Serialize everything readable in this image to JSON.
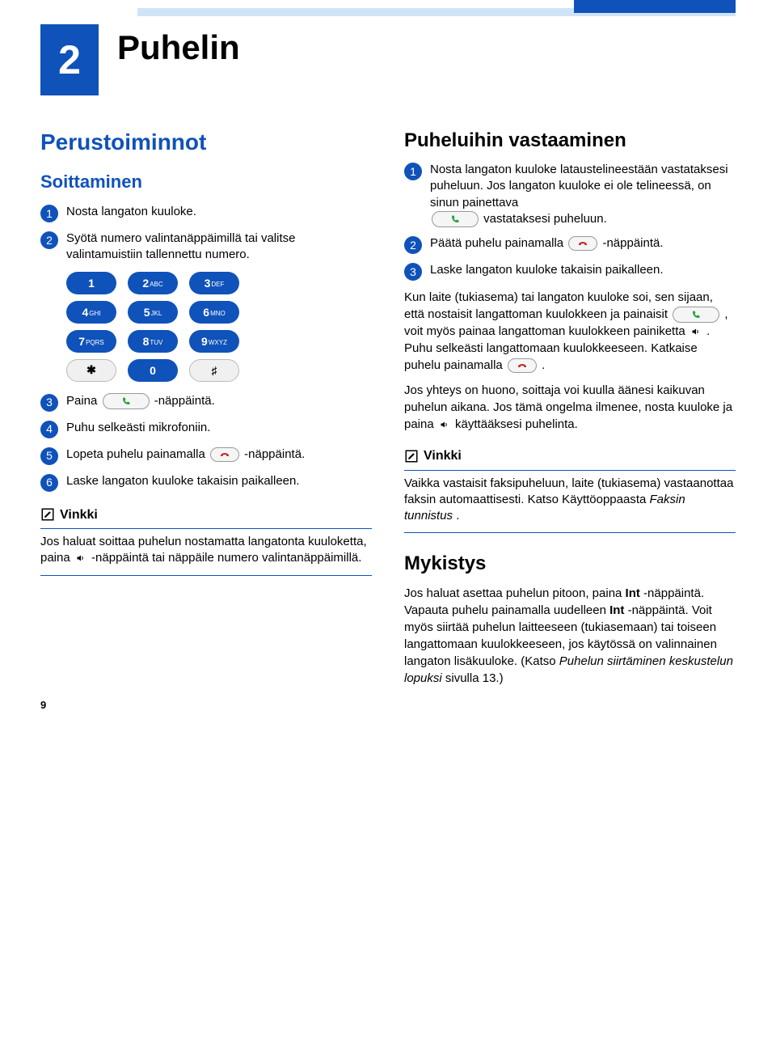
{
  "colors": {
    "brand_blue": "#0f52ba",
    "light_blue": "#d0e4f7",
    "key_gray_bg": "#f0f0f0",
    "btn_border": "#999999",
    "phone_green": "#1fa33a",
    "phone_red": "#c62828"
  },
  "chapter": {
    "number": "2",
    "title": "Puhelin"
  },
  "page_number": "9",
  "left": {
    "h2": "Perustoiminnot",
    "h3": "Soittaminen",
    "steps": {
      "1": "Nosta langaton kuuloke.",
      "2": "Syötä numero valintanäppäimillä tai valitse valintamuistiin tallennettu numero.",
      "3_pre": "Paina ",
      "3_post": "-näppäintä.",
      "4": "Puhu selkeästi mikrofoniin.",
      "5_pre": "Lopeta puhelu painamalla ",
      "5_post": "-näppäintä.",
      "6": "Laske langaton kuuloke takaisin paikalleen."
    },
    "keypad": [
      {
        "digit": "1",
        "sub": ""
      },
      {
        "digit": "2",
        "sub": "ABC"
      },
      {
        "digit": "3",
        "sub": "DEF"
      },
      {
        "digit": "4",
        "sub": "GHI"
      },
      {
        "digit": "5",
        "sub": "JKL"
      },
      {
        "digit": "6",
        "sub": "MNO"
      },
      {
        "digit": "7",
        "sub": "PQRS"
      },
      {
        "digit": "8",
        "sub": "TUV"
      },
      {
        "digit": "9",
        "sub": "WXYZ"
      },
      {
        "digit": "✱",
        "sub": "",
        "gray": true
      },
      {
        "digit": "0",
        "sub": ""
      },
      {
        "digit": "♯",
        "sub": "",
        "gray": true
      }
    ],
    "note": {
      "title": "Vinkki",
      "body_a": "Jos haluat soittaa puhelun nostamatta langatonta kuuloketta, paina ",
      "body_b": "-näppäintä tai näppäile numero valintanäppäimillä."
    }
  },
  "right": {
    "h3": "Puheluihin vastaaminen",
    "step1_a": "Nosta langaton kuuloke lataustelineestään vastataksesi puheluun. Jos langaton kuuloke ei ole telineessä, on sinun painettava",
    "step1_b": " vastataksesi puheluun.",
    "step2_a": "Päätä puhelu painamalla ",
    "step2_b": "-näppäintä.",
    "step3": "Laske langaton kuuloke takaisin paikalleen.",
    "para1_a": "Kun laite (tukiasema) tai langaton kuuloke soi, sen sijaan, että nostaisit langattoman kuulokkeen ja painaisit ",
    "para1_b": ", voit myös painaa langattoman kuulokkeen painiketta ",
    "para1_c": ". Puhu selkeästi langattomaan kuulokkeeseen. Katkaise puhelu painamalla ",
    "para1_d": ".",
    "para2_a": "Jos yhteys on huono, soittaja voi kuulla äänesi kaikuvan puhelun aikana. Jos tämä ongelma ilmenee, nosta kuuloke ja paina ",
    "para2_b": " käyttääksesi puhelinta.",
    "note_title": "Vinkki",
    "note_body_a": "Vaikka vastaisit faksipuheluun, laite (tukiasema) vastaanottaa faksin automaattisesti. Katso Käyttöoppaasta ",
    "note_body_b": "Faksin tunnistus",
    "note_body_c": ".",
    "mute_h3": "Mykistys",
    "mute_p1_a": "Jos haluat asettaa puhelun pitoon, paina ",
    "mute_p1_b": "Int",
    "mute_p1_c": "-näppäintä. Vapauta puhelu painamalla uudelleen ",
    "mute_p1_d": "Int",
    "mute_p1_e": "-näppäintä. Voit myös siirtää puhelun laitteeseen (tukiasemaan) tai toiseen langattomaan kuulokkeeseen, jos käytössä on valinnainen langaton lisäkuuloke. (Katso ",
    "mute_p1_f": "Puhelun siirtäminen keskustelun lopuksi",
    "mute_p1_g": " sivulla 13.)"
  }
}
